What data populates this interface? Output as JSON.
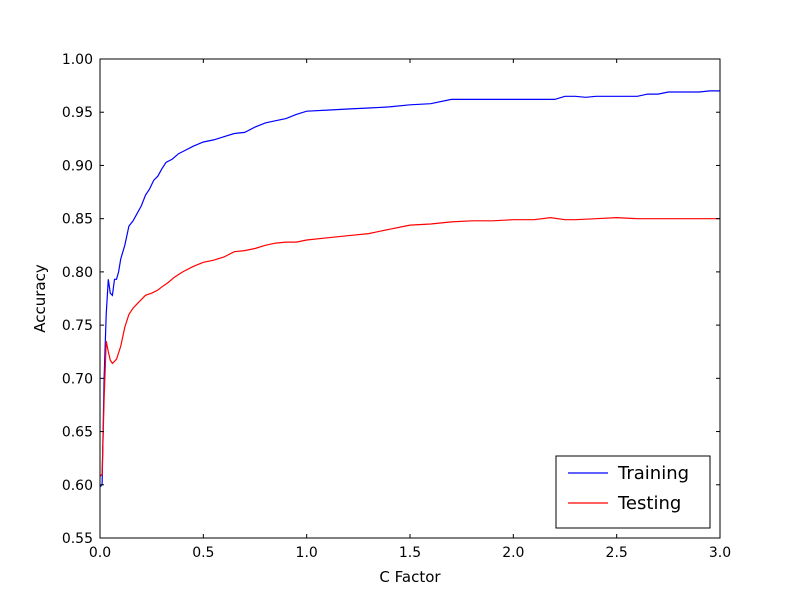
{
  "chart_data": {
    "type": "line",
    "title": "",
    "xlabel": "C Factor",
    "ylabel": "Accuracy",
    "xlim": [
      0.0,
      3.0
    ],
    "ylim": [
      0.55,
      1.0
    ],
    "x_ticks": [
      "0.0",
      "0.5",
      "1.0",
      "1.5",
      "2.0",
      "2.5",
      "3.0"
    ],
    "y_ticks": [
      "0.55",
      "0.60",
      "0.65",
      "0.70",
      "0.75",
      "0.80",
      "0.85",
      "0.90",
      "0.95",
      "1.00"
    ],
    "grid": false,
    "legend_position": "lower-right",
    "series": [
      {
        "name": "Training",
        "color": "#0000ff",
        "points": [
          [
            0.0,
            0.598
          ],
          [
            0.01,
            0.6
          ],
          [
            0.02,
            0.7
          ],
          [
            0.03,
            0.76
          ],
          [
            0.04,
            0.793
          ],
          [
            0.05,
            0.78
          ],
          [
            0.06,
            0.778
          ],
          [
            0.07,
            0.793
          ],
          [
            0.08,
            0.793
          ],
          [
            0.09,
            0.8
          ],
          [
            0.1,
            0.812
          ],
          [
            0.12,
            0.825
          ],
          [
            0.14,
            0.843
          ],
          [
            0.16,
            0.848
          ],
          [
            0.18,
            0.855
          ],
          [
            0.2,
            0.862
          ],
          [
            0.22,
            0.872
          ],
          [
            0.24,
            0.878
          ],
          [
            0.26,
            0.886
          ],
          [
            0.28,
            0.89
          ],
          [
            0.3,
            0.897
          ],
          [
            0.32,
            0.903
          ],
          [
            0.35,
            0.906
          ],
          [
            0.38,
            0.911
          ],
          [
            0.4,
            0.913
          ],
          [
            0.45,
            0.918
          ],
          [
            0.5,
            0.922
          ],
          [
            0.55,
            0.924
          ],
          [
            0.6,
            0.927
          ],
          [
            0.65,
            0.93
          ],
          [
            0.7,
            0.931
          ],
          [
            0.75,
            0.936
          ],
          [
            0.8,
            0.94
          ],
          [
            0.85,
            0.942
          ],
          [
            0.9,
            0.944
          ],
          [
            0.95,
            0.948
          ],
          [
            1.0,
            0.951
          ],
          [
            1.1,
            0.952
          ],
          [
            1.2,
            0.953
          ],
          [
            1.3,
            0.954
          ],
          [
            1.4,
            0.955
          ],
          [
            1.5,
            0.957
          ],
          [
            1.6,
            0.958
          ],
          [
            1.7,
            0.962
          ],
          [
            1.8,
            0.962
          ],
          [
            1.9,
            0.962
          ],
          [
            2.0,
            0.962
          ],
          [
            2.1,
            0.962
          ],
          [
            2.2,
            0.962
          ],
          [
            2.25,
            0.965
          ],
          [
            2.3,
            0.965
          ],
          [
            2.35,
            0.964
          ],
          [
            2.4,
            0.965
          ],
          [
            2.5,
            0.965
          ],
          [
            2.6,
            0.965
          ],
          [
            2.65,
            0.967
          ],
          [
            2.7,
            0.967
          ],
          [
            2.75,
            0.969
          ],
          [
            2.8,
            0.969
          ],
          [
            2.9,
            0.969
          ],
          [
            2.95,
            0.97
          ],
          [
            3.0,
            0.97
          ]
        ]
      },
      {
        "name": "Testing",
        "color": "#ff0000",
        "points": [
          [
            0.0,
            0.608
          ],
          [
            0.01,
            0.61
          ],
          [
            0.02,
            0.68
          ],
          [
            0.03,
            0.735
          ],
          [
            0.04,
            0.725
          ],
          [
            0.05,
            0.717
          ],
          [
            0.06,
            0.714
          ],
          [
            0.07,
            0.716
          ],
          [
            0.08,
            0.718
          ],
          [
            0.1,
            0.73
          ],
          [
            0.12,
            0.748
          ],
          [
            0.14,
            0.76
          ],
          [
            0.16,
            0.766
          ],
          [
            0.18,
            0.77
          ],
          [
            0.2,
            0.774
          ],
          [
            0.22,
            0.778
          ],
          [
            0.25,
            0.78
          ],
          [
            0.28,
            0.783
          ],
          [
            0.3,
            0.786
          ],
          [
            0.33,
            0.79
          ],
          [
            0.36,
            0.795
          ],
          [
            0.4,
            0.8
          ],
          [
            0.45,
            0.805
          ],
          [
            0.5,
            0.809
          ],
          [
            0.55,
            0.811
          ],
          [
            0.6,
            0.814
          ],
          [
            0.65,
            0.819
          ],
          [
            0.7,
            0.82
          ],
          [
            0.75,
            0.822
          ],
          [
            0.8,
            0.825
          ],
          [
            0.85,
            0.827
          ],
          [
            0.9,
            0.828
          ],
          [
            0.95,
            0.828
          ],
          [
            1.0,
            0.83
          ],
          [
            1.1,
            0.832
          ],
          [
            1.2,
            0.834
          ],
          [
            1.3,
            0.836
          ],
          [
            1.4,
            0.84
          ],
          [
            1.5,
            0.844
          ],
          [
            1.6,
            0.845
          ],
          [
            1.7,
            0.847
          ],
          [
            1.8,
            0.848
          ],
          [
            1.9,
            0.848
          ],
          [
            2.0,
            0.849
          ],
          [
            2.1,
            0.849
          ],
          [
            2.18,
            0.851
          ],
          [
            2.25,
            0.849
          ],
          [
            2.3,
            0.849
          ],
          [
            2.4,
            0.85
          ],
          [
            2.5,
            0.851
          ],
          [
            2.6,
            0.85
          ],
          [
            2.7,
            0.85
          ],
          [
            2.8,
            0.85
          ],
          [
            2.9,
            0.85
          ],
          [
            3.0,
            0.85
          ]
        ]
      }
    ]
  }
}
